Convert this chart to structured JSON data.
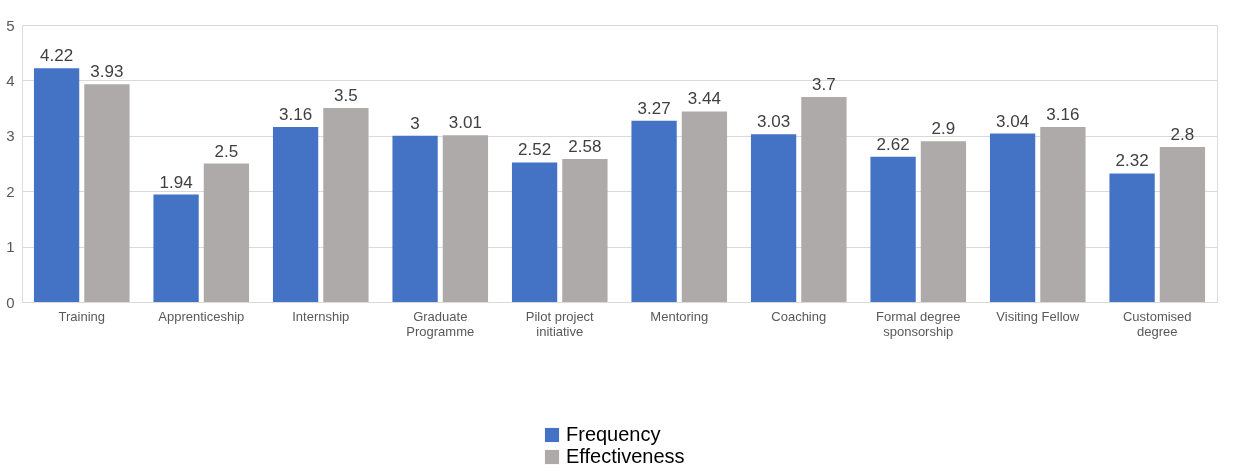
{
  "chart_data": {
    "type": "bar",
    "categories": [
      "Training",
      "Apprenticeship",
      "Internship",
      "Graduate\nProgramme",
      "Pilot project\ninitiative",
      "Mentoring",
      "Coaching",
      "Formal degree\nsponsorship",
      "Visiting Fellow",
      "Customised\ndegree"
    ],
    "series": [
      {
        "name": "Frequency",
        "color": "#4472c4",
        "values": [
          4.22,
          1.94,
          3.16,
          3,
          2.52,
          3.27,
          3.03,
          2.62,
          3.04,
          2.32
        ]
      },
      {
        "name": "Effectiveness",
        "color": "#aeaaaa",
        "values": [
          3.93,
          2.5,
          3.5,
          3.01,
          2.58,
          3.44,
          3.7,
          2.9,
          3.16,
          2.8
        ]
      }
    ],
    "ylim": [
      0,
      5
    ],
    "yticks": [
      0,
      1,
      2,
      3,
      4,
      5
    ],
    "grid": "y",
    "legend": "bottom",
    "data_labels": true
  }
}
